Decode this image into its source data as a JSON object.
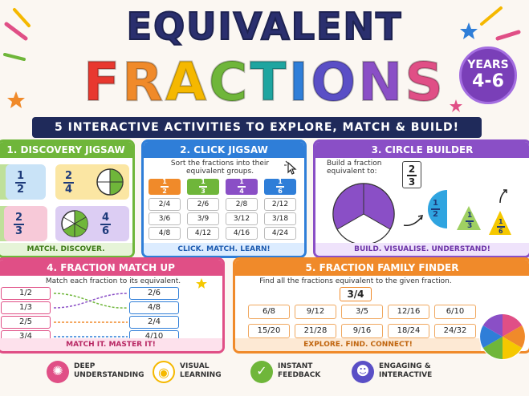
{
  "title": {
    "line1": "EQUIVALENT",
    "line2_letters": [
      "F",
      "R",
      "A",
      "C",
      "T",
      "I",
      "O",
      "N",
      "S"
    ]
  },
  "years": {
    "label": "YEARS",
    "range": "4-6"
  },
  "subtitle": "5 INTERACTIVE ACTIVITIES TO EXPLORE, MATCH & BUILD!",
  "colors": {
    "title_letters": [
      "#e8382f",
      "#f08a2a",
      "#f5b800",
      "#6fb63a",
      "#1fa5a0",
      "#2f7ed8",
      "#5a4fc6",
      "#8a4fc6",
      "#e04f86"
    ],
    "green": "#6fb63a",
    "blue": "#2f7ed8",
    "purple": "#8a4fc6",
    "pink": "#e04f86",
    "orange": "#f08a2a"
  },
  "panel1": {
    "title": "1. DISCOVERY JIGSAW",
    "pieces": [
      {
        "n": "1",
        "d": "2"
      },
      {
        "n": "2",
        "d": "4"
      },
      {
        "n": "2",
        "d": "3"
      },
      {
        "n": "4",
        "d": "6"
      }
    ],
    "footer": "MATCH. DISCOVER. UNDERSTAND!"
  },
  "panel2": {
    "title": "2. CLICK JIGSAW",
    "instruction": "Sort the fractions into their equivalent groups.",
    "columns": [
      {
        "n": "1",
        "d": "2",
        "cells": [
          "2/4",
          "3/6",
          "4/8"
        ]
      },
      {
        "n": "1",
        "d": "3",
        "cells": [
          "2/6",
          "3/9",
          "4/12"
        ]
      },
      {
        "n": "1",
        "d": "4",
        "cells": [
          "2/8",
          "3/12",
          "4/16"
        ]
      },
      {
        "n": "1",
        "d": "6",
        "cells": [
          "2/12",
          "3/18",
          "4/24"
        ]
      }
    ],
    "footer": "CLICK. MATCH. LEARN!"
  },
  "panel3": {
    "title": "3. CIRCLE BUILDER",
    "instruction": "Build a fraction equivalent to:",
    "target": {
      "n": "2",
      "d": "3"
    },
    "pieces": [
      {
        "n": "1",
        "d": "2"
      },
      {
        "n": "1",
        "d": "3"
      },
      {
        "n": "1",
        "d": "6"
      }
    ],
    "footer": "BUILD. VISUALISE. UNDERSTAND!"
  },
  "panel4": {
    "title": "4. FRACTION MATCH UP",
    "instruction": "Match each fraction to its equivalent.",
    "left": [
      "1/2",
      "1/3",
      "2/5",
      "3/4"
    ],
    "right": [
      "2/6",
      "4/8",
      "2/4",
      "4/10"
    ],
    "footer": "MATCH IT. MASTER IT!"
  },
  "panel5": {
    "title": "5. FRACTION FAMILY FINDER",
    "instruction": "Find all the fractions equivalent to the given fraction.",
    "target": "3/4",
    "row1": [
      "6/8",
      "9/12",
      "3/5",
      "12/16",
      "6/10"
    ],
    "row2": [
      "15/20",
      "21/28",
      "9/16",
      "18/24",
      "24/32"
    ],
    "footer": "EXPLORE. FIND. CONNECT!"
  },
  "features": [
    {
      "icon": "brain-icon",
      "line1": "DEEP",
      "line2": "UNDERSTANDING",
      "color": "#e04f86"
    },
    {
      "icon": "eye-icon",
      "line1": "VISUAL",
      "line2": "LEARNING",
      "color": "#f5b800"
    },
    {
      "icon": "check-icon",
      "line1": "INSTANT",
      "line2": "FEEDBACK",
      "color": "#6fb63a"
    },
    {
      "icon": "people-icon",
      "line1": "ENGAGING &",
      "line2": "INTERACTIVE",
      "color": "#5a4fc6"
    }
  ]
}
